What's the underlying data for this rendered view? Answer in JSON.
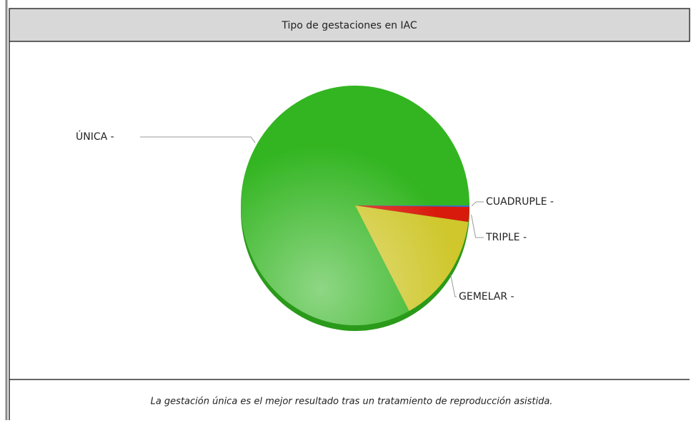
{
  "chart_data": {
    "type": "pie",
    "title": "Tipo de gestaciones en IAC",
    "categories": [
      "CUADRUPLE -",
      "TRIPLE -",
      "GEMELAR -",
      "ÚNICA -"
    ],
    "values": [
      0.2,
      2,
      15,
      83
    ],
    "colors": [
      "#3a6fd0",
      "#d81a0c",
      "#cfc72c",
      "#33b521"
    ],
    "footer": "La gestación única es el mejor resultado tras un tratamiento de reproducción asistida."
  }
}
